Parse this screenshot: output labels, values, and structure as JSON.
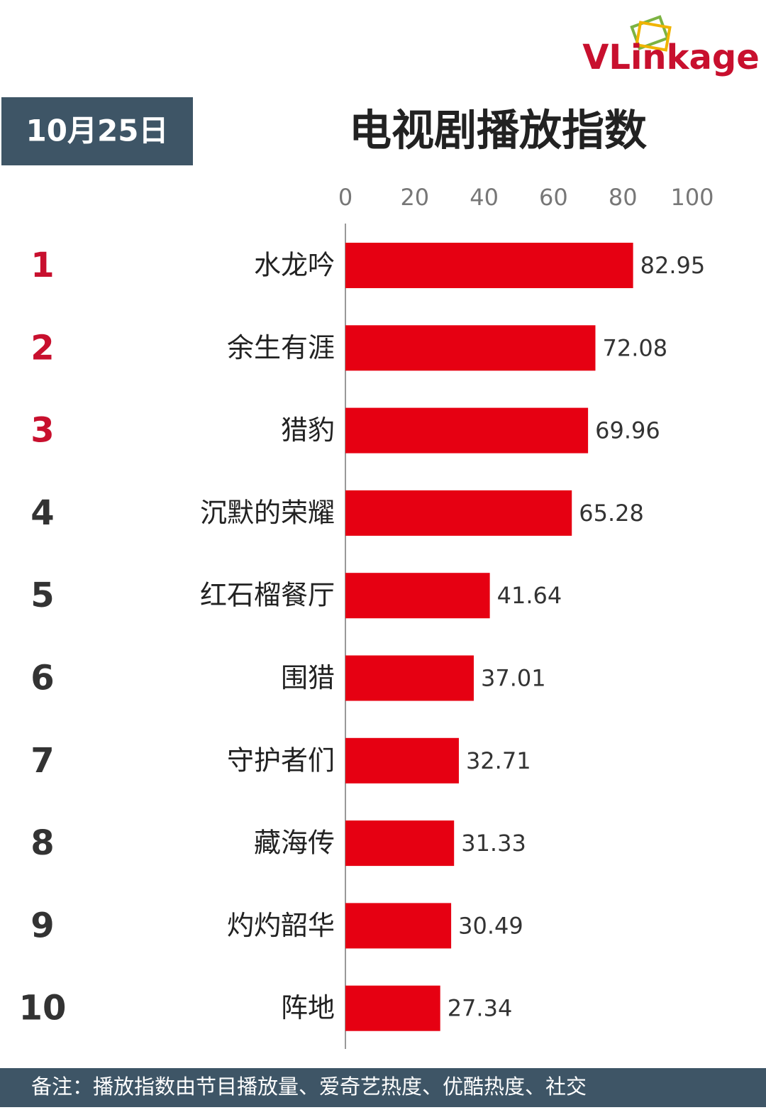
{
  "logo": "VLinkage",
  "date": "10月25日",
  "note": "备注：播放指数由节目播放量、爱奇艺热度、优酷热度、社交",
  "chart_data": {
    "type": "bar",
    "orientation": "horizontal",
    "title": "电视剧播放指数",
    "ranks": [
      1,
      2,
      3,
      4,
      5,
      6,
      7,
      8,
      9,
      10
    ],
    "rank_colors": [
      "#c8102e",
      "#c8102e",
      "#c8102e",
      "#333333",
      "#333333",
      "#333333",
      "#333333",
      "#333333",
      "#333333",
      "#333333"
    ],
    "categories": [
      "水龙吟",
      "余生有涯",
      "猎豹",
      "沉默的荣耀",
      "红石榴餐厅",
      "围猎",
      "守护者们",
      "藏海传",
      "灼灼韶华",
      "阵地"
    ],
    "values": [
      82.95,
      72.08,
      69.96,
      65.28,
      41.64,
      37.01,
      32.71,
      31.33,
      30.49,
      27.34
    ],
    "color": "#e60012",
    "xlim": [
      0,
      100
    ],
    "xticks": [
      0,
      20,
      40,
      60,
      80,
      100
    ]
  }
}
